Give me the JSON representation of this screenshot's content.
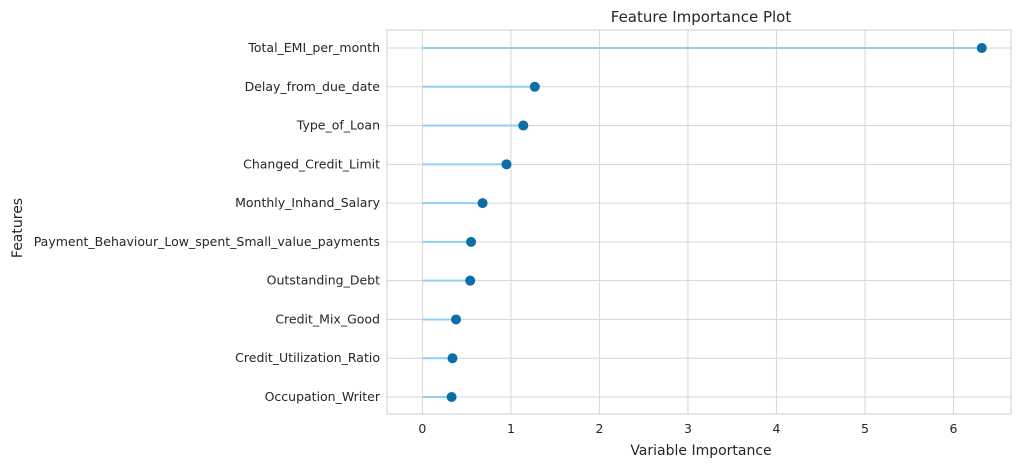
{
  "chart_data": {
    "type": "lollipop",
    "title": "Feature Importance Plot",
    "xlabel": "Variable Importance",
    "ylabel": "Features",
    "xlim": [
      -0.4,
      6.65
    ],
    "xticks": [
      0,
      1,
      2,
      3,
      4,
      5,
      6
    ],
    "grid": true,
    "categories": [
      "Total_EMI_per_month",
      "Delay_from_due_date",
      "Type_of_Loan",
      "Changed_Credit_Limit",
      "Monthly_Inhand_Salary",
      "Payment_Behaviour_Low_spent_Small_value_payments",
      "Outstanding_Debt",
      "Credit_Mix_Good",
      "Credit_Utilization_Ratio",
      "Occupation_Writer"
    ],
    "values": [
      6.32,
      1.27,
      1.14,
      0.95,
      0.68,
      0.55,
      0.54,
      0.38,
      0.34,
      0.33
    ],
    "colors": {
      "stem": "#8dd0f0",
      "marker": "#0a6fa6",
      "grid": "#d6d6d6",
      "frame": "#cfcfcf"
    }
  }
}
